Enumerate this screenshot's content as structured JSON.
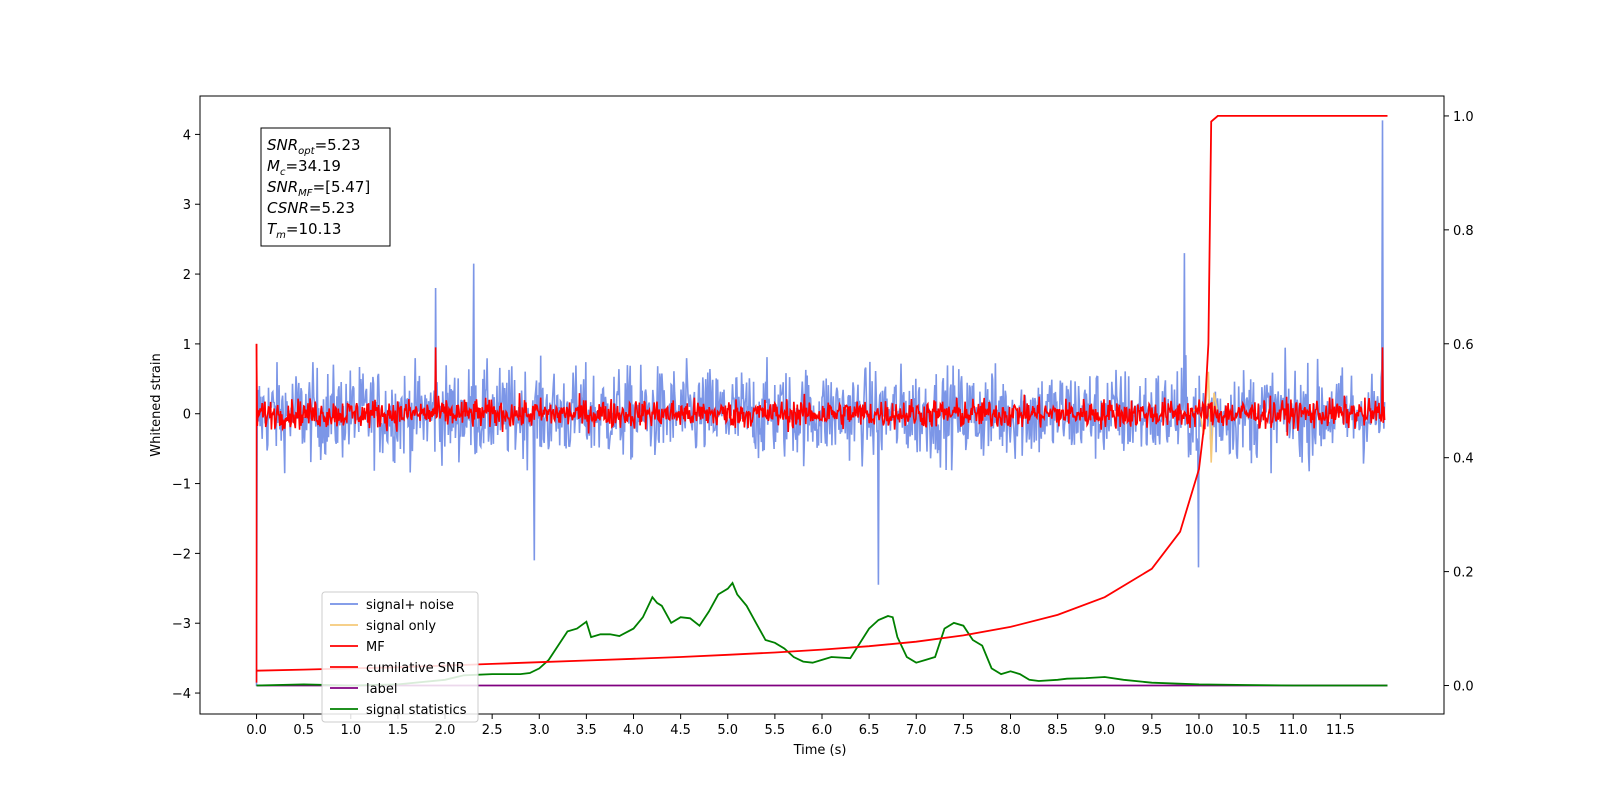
{
  "chart_data": {
    "type": "line",
    "xlabel": "Time (s)",
    "ylabel": "Whitened strain",
    "xlim": [
      -0.6,
      12.6
    ],
    "ylim_left": [
      -4.3,
      4.55
    ],
    "ylim_right": [
      -0.05,
      1.035
    ],
    "x_ticks": [
      "0.0",
      "0.5",
      "1.0",
      "1.5",
      "2.0",
      "2.5",
      "3.0",
      "3.5",
      "4.0",
      "4.5",
      "5.0",
      "5.5",
      "6.0",
      "6.5",
      "7.0",
      "7.5",
      "8.0",
      "8.5",
      "9.0",
      "9.5",
      "10.0",
      "10.5",
      "11.0",
      "11.5"
    ],
    "y_ticks_left": [
      "4",
      "3",
      "2",
      "1",
      "0",
      "−1",
      "−2",
      "−3",
      "−4"
    ],
    "y_ticks_right": [
      "1.0",
      "0.8",
      "0.6",
      "0.4",
      "0.2",
      "0.0"
    ],
    "grid": false,
    "legend_position": "lower-left",
    "annotation": [
      {
        "sym": "SNR",
        "sub": "opt",
        "val": "=5.23"
      },
      {
        "sym": "M",
        "sub": "c",
        "val": "=34.19"
      },
      {
        "sym": "SNR",
        "sub": "MF",
        "val": "=[5.47]"
      },
      {
        "sym": "CSNR",
        "sub": "",
        "val": "=5.23"
      },
      {
        "sym": "T",
        "sub": "m",
        "val": "=10.13"
      }
    ],
    "series": [
      {
        "name": "signal+ noise",
        "color": "#7590e6",
        "axis": "left",
        "note": "noise band approx ±1.0, spikes to ~2.2 / -2.4",
        "spikes": [
          [
            0.0,
            -3.9
          ],
          [
            1.9,
            1.8
          ],
          [
            2.3,
            2.15
          ],
          [
            2.95,
            -2.1
          ],
          [
            9.85,
            2.3
          ],
          [
            10.0,
            -2.2
          ],
          [
            6.6,
            -2.45
          ],
          [
            11.95,
            4.2
          ]
        ]
      },
      {
        "name": "signal only",
        "color": "#f5c97a",
        "axis": "left",
        "x": [
          9.9,
          10.0,
          10.05,
          10.1,
          10.13,
          10.16,
          10.2
        ],
        "y": [
          0,
          0.1,
          -0.3,
          0.6,
          -0.7,
          0.3,
          0
        ]
      },
      {
        "name": "MF",
        "color": "#ff0000",
        "axis": "left",
        "note": "noise band approx ±0.35, spikes near 1.9 s and 11.95 s",
        "spikes": [
          [
            0.0,
            1.0
          ],
          [
            1.9,
            0.95
          ],
          [
            11.95,
            0.95
          ]
        ]
      },
      {
        "name": "cumilative SNR",
        "color": "#ff0000",
        "axis": "right",
        "x": [
          0.0,
          0.5,
          1.0,
          1.5,
          2.0,
          2.5,
          3.0,
          3.5,
          4.0,
          4.5,
          5.0,
          5.5,
          6.0,
          6.5,
          7.0,
          7.5,
          8.0,
          8.5,
          9.0,
          9.5,
          9.8,
          10.0,
          10.05,
          10.1,
          10.13,
          10.2,
          11.0,
          12.0
        ],
        "y": [
          0.026,
          0.028,
          0.03,
          0.032,
          0.035,
          0.038,
          0.041,
          0.044,
          0.047,
          0.05,
          0.054,
          0.058,
          0.063,
          0.069,
          0.077,
          0.088,
          0.103,
          0.124,
          0.155,
          0.205,
          0.27,
          0.38,
          0.45,
          0.6,
          0.99,
          1.0,
          1.0,
          1.0
        ]
      },
      {
        "name": "label",
        "color": "#800080",
        "axis": "right",
        "x": [
          0.0,
          12.0
        ],
        "y": [
          0.0,
          0.0
        ]
      },
      {
        "name": "signal statistics",
        "color": "#008000",
        "axis": "right",
        "x": [
          0.0,
          0.5,
          1.0,
          1.5,
          2.0,
          2.2,
          2.5,
          2.6,
          2.8,
          2.9,
          3.0,
          3.1,
          3.2,
          3.3,
          3.4,
          3.5,
          3.55,
          3.65,
          3.75,
          3.85,
          4.0,
          4.1,
          4.2,
          4.25,
          4.3,
          4.4,
          4.5,
          4.6,
          4.7,
          4.8,
          4.9,
          5.0,
          5.05,
          5.1,
          5.2,
          5.3,
          5.4,
          5.5,
          5.6,
          5.7,
          5.8,
          5.9,
          6.0,
          6.1,
          6.3,
          6.5,
          6.6,
          6.7,
          6.75,
          6.8,
          6.9,
          7.0,
          7.1,
          7.2,
          7.3,
          7.4,
          7.5,
          7.6,
          7.7,
          7.8,
          7.9,
          8.0,
          8.1,
          8.2,
          8.3,
          8.5,
          8.6,
          8.8,
          9.0,
          9.2,
          9.5,
          10.0,
          10.5,
          11.0,
          12.0
        ],
        "y": [
          0.0,
          0.002,
          0.0,
          0.002,
          0.01,
          0.018,
          0.02,
          0.02,
          0.02,
          0.022,
          0.03,
          0.045,
          0.07,
          0.095,
          0.1,
          0.112,
          0.085,
          0.09,
          0.09,
          0.087,
          0.1,
          0.12,
          0.155,
          0.145,
          0.14,
          0.11,
          0.12,
          0.118,
          0.105,
          0.13,
          0.16,
          0.17,
          0.18,
          0.16,
          0.14,
          0.11,
          0.08,
          0.075,
          0.065,
          0.05,
          0.042,
          0.04,
          0.045,
          0.05,
          0.048,
          0.1,
          0.115,
          0.122,
          0.12,
          0.085,
          0.05,
          0.04,
          0.045,
          0.05,
          0.1,
          0.11,
          0.105,
          0.08,
          0.07,
          0.03,
          0.02,
          0.025,
          0.02,
          0.01,
          0.008,
          0.01,
          0.012,
          0.013,
          0.015,
          0.01,
          0.005,
          0.002,
          0.001,
          0.0,
          0.0
        ]
      }
    ]
  }
}
